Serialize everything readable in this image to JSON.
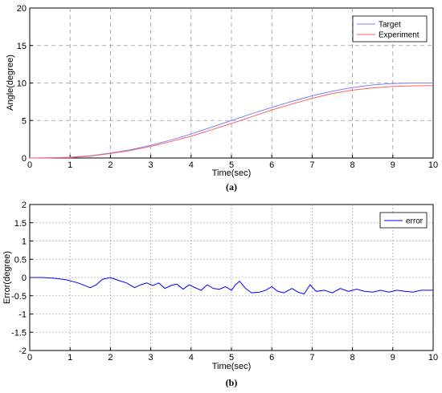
{
  "chart_data": [
    {
      "type": "line",
      "caption": "(a)",
      "xlabel": "Time(sec)",
      "ylabel": "Angle(degree)",
      "xlim": [
        0,
        10
      ],
      "ylim": [
        0,
        20
      ],
      "xticks": [
        0,
        1,
        2,
        3,
        4,
        5,
        6,
        7,
        8,
        9,
        10
      ],
      "yticks": [
        0,
        5,
        10,
        15,
        20
      ],
      "grid": "dashed",
      "legend_position": "top-right",
      "series": [
        {
          "name": "Target",
          "color": "#7f7fff",
          "x": [
            0,
            0.5,
            1,
            1.5,
            2,
            2.5,
            3,
            3.5,
            4,
            4.5,
            5,
            5.5,
            6,
            6.5,
            7,
            7.5,
            8,
            8.5,
            9,
            9.5,
            10
          ],
          "y": [
            0,
            0.02,
            0.1,
            0.3,
            0.65,
            1.1,
            1.7,
            2.4,
            3.2,
            4.1,
            5.0,
            5.9,
            6.75,
            7.55,
            8.3,
            8.9,
            9.4,
            9.75,
            9.93,
            10.0,
            10.0
          ]
        },
        {
          "name": "Experiment",
          "color": "#ff6060",
          "x": [
            0,
            0.5,
            1,
            1.5,
            2,
            2.5,
            3,
            3.5,
            4,
            4.5,
            5,
            5.5,
            6,
            6.5,
            7,
            7.5,
            8,
            8.5,
            9,
            9.5,
            10
          ],
          "y": [
            0,
            0.02,
            0.05,
            0.25,
            0.6,
            1.0,
            1.55,
            2.2,
            2.9,
            3.75,
            4.6,
            5.5,
            6.4,
            7.2,
            7.95,
            8.6,
            9.05,
            9.35,
            9.55,
            9.62,
            9.65
          ]
        }
      ]
    },
    {
      "type": "line",
      "caption": "(b)",
      "xlabel": "Time(sec)",
      "ylabel": "Error(degree)",
      "xlim": [
        0,
        10
      ],
      "ylim": [
        -2,
        2
      ],
      "xticks": [
        0,
        1,
        2,
        3,
        4,
        5,
        6,
        7,
        8,
        9,
        10
      ],
      "yticks": [
        -2,
        -1.5,
        -1,
        -0.5,
        0,
        0.5,
        1,
        1.5,
        2
      ],
      "grid": "dotted",
      "legend_position": "top-right",
      "series": [
        {
          "name": "error",
          "color": "#0000ff",
          "x": [
            0,
            0.3,
            0.6,
            0.9,
            1.2,
            1.5,
            1.65,
            1.8,
            2.0,
            2.2,
            2.4,
            2.6,
            2.75,
            2.9,
            3.05,
            3.2,
            3.35,
            3.5,
            3.65,
            3.8,
            3.95,
            4.1,
            4.25,
            4.4,
            4.55,
            4.7,
            4.85,
            5.0,
            5.1,
            5.2,
            5.35,
            5.5,
            5.7,
            5.85,
            6.0,
            6.15,
            6.3,
            6.5,
            6.65,
            6.8,
            6.95,
            7.1,
            7.3,
            7.5,
            7.7,
            7.9,
            8.1,
            8.3,
            8.5,
            8.7,
            8.9,
            9.1,
            9.3,
            9.5,
            9.7,
            9.85,
            10.0
          ],
          "y": [
            0.0,
            0.0,
            -0.02,
            -0.06,
            -0.15,
            -0.28,
            -0.2,
            -0.05,
            0.0,
            -0.08,
            -0.15,
            -0.28,
            -0.2,
            -0.15,
            -0.22,
            -0.15,
            -0.3,
            -0.22,
            -0.18,
            -0.32,
            -0.2,
            -0.28,
            -0.35,
            -0.2,
            -0.3,
            -0.32,
            -0.25,
            -0.35,
            -0.2,
            -0.1,
            -0.3,
            -0.42,
            -0.4,
            -0.35,
            -0.25,
            -0.38,
            -0.42,
            -0.3,
            -0.4,
            -0.45,
            -0.2,
            -0.38,
            -0.35,
            -0.42,
            -0.3,
            -0.38,
            -0.32,
            -0.38,
            -0.4,
            -0.35,
            -0.4,
            -0.35,
            -0.38,
            -0.4,
            -0.35,
            -0.35,
            -0.35
          ]
        }
      ]
    }
  ]
}
